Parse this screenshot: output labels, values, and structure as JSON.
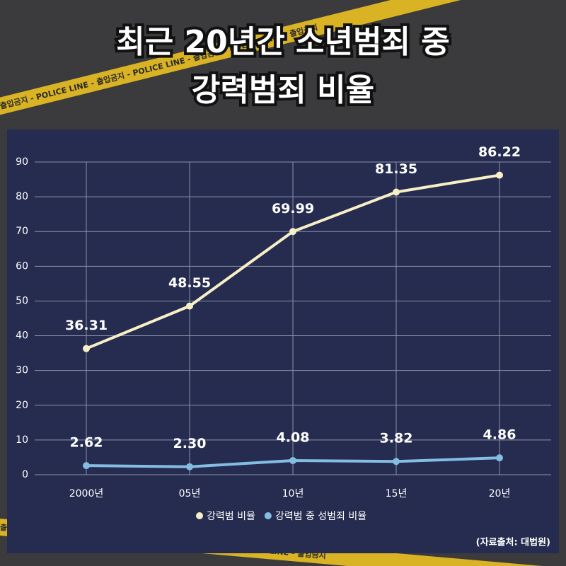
{
  "chart_data": {
    "type": "line",
    "title": [
      "최근 20년간 소년범죄 중",
      "강력범죄 비율"
    ],
    "background_text": "출입금지 - POLICE LINE - 출입금지 - POLICE LINE - 출입금지 - POLICE LINE - 출입금지",
    "categories": [
      "2000년",
      "05년",
      "10년",
      "15년",
      "20년"
    ],
    "series": [
      {
        "name": "강력범 비율",
        "color": "#f8efc6",
        "values": [
          36.31,
          48.55,
          69.99,
          81.35,
          86.22
        ]
      },
      {
        "name": "강력범 중 성범죄 비율",
        "color": "#84bde3",
        "values": [
          2.62,
          2.3,
          4.08,
          3.82,
          4.86
        ],
        "value_labels": [
          "2.62",
          "2.30",
          "4.08",
          "3.82",
          "4.86"
        ]
      }
    ],
    "ylim": [
      0,
      90
    ],
    "yticks": [
      0,
      10,
      20,
      30,
      40,
      50,
      60,
      70,
      80,
      90
    ],
    "grid": true,
    "legend": "bottom",
    "source": "(자료출처: 대법원)"
  }
}
